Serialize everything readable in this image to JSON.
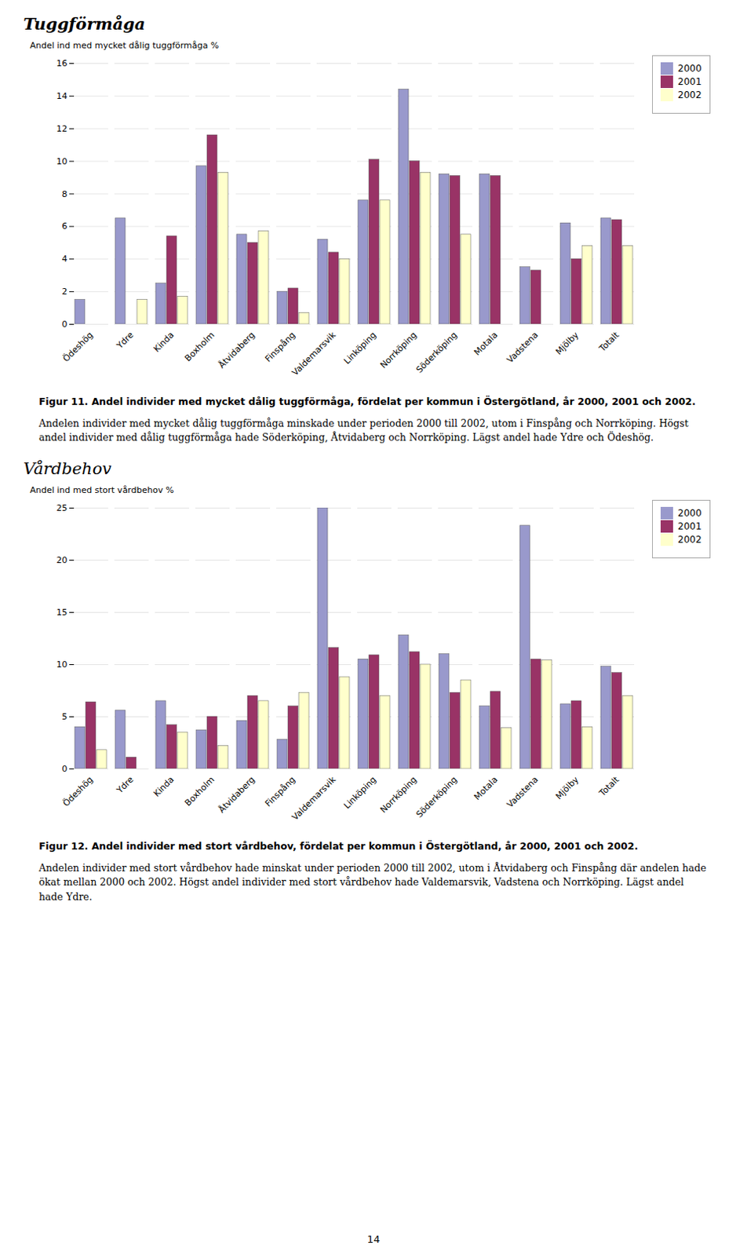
{
  "chart_data": [
    {
      "type": "bar",
      "title": "Tuggförmåga",
      "ylabel": "Andel ind med mycket dålig tuggförmåga %",
      "categories": [
        "Ödeshög",
        "Ydre",
        "Kinda",
        "Boxholm",
        "Åtvidaberg",
        "Finspång",
        "Valdemarsvik",
        "Linköping",
        "Norrköping",
        "Söderköping",
        "Motala",
        "Vadstena",
        "Mjölby",
        "Totalt"
      ],
      "series": [
        {
          "name": "2000",
          "color": "#9999CC",
          "values": [
            1.5,
            6.5,
            2.5,
            9.7,
            5.5,
            2.0,
            5.2,
            7.6,
            14.4,
            9.2,
            9.2,
            3.5,
            6.2,
            6.5
          ]
        },
        {
          "name": "2001",
          "color": "#993366",
          "values": [
            0.0,
            0.0,
            5.4,
            11.6,
            5.0,
            2.2,
            4.4,
            10.1,
            10.0,
            9.1,
            9.1,
            3.3,
            4.0,
            6.4
          ]
        },
        {
          "name": "2002",
          "color": "#FFFFCC",
          "values": [
            0.0,
            1.5,
            1.7,
            9.3,
            5.7,
            0.7,
            4.0,
            7.6,
            9.3,
            5.5,
            0.0,
            0.0,
            4.8,
            4.8
          ]
        }
      ],
      "ylim": [
        0,
        16
      ],
      "yticks": [
        0,
        2,
        4,
        6,
        8,
        10,
        12,
        14,
        16
      ],
      "grid": true,
      "legend": "right",
      "annotations": [
        "Figur 11. Andel individer med mycket dålig tuggförmåga, fördelat per kommun i Östergötland, år 2000, 2001 och 2002.",
        "Andelen individer med mycket dålig tuggförmåga minskade under perioden 2000 till 2002, utom i Finspång och Norrköping. Högst andel individer med dålig tuggförmåga hade Söderköping, Åtvidaberg och Norrköping. Lägst andel hade Ydre och Ödeshög."
      ]
    },
    {
      "type": "bar",
      "title": "Vårdbehov",
      "ylabel": "Andel ind med stort vårdbehov %",
      "categories": [
        "Ödeshög",
        "Ydre",
        "Kinda",
        "Boxholm",
        "Åtvidaberg",
        "Finspång",
        "Valdemarsvik",
        "Linköping",
        "Norrköping",
        "Söderköping",
        "Motala",
        "Vadstena",
        "Mjölby",
        "Totalt"
      ],
      "series": [
        {
          "name": "2000",
          "color": "#9999CC",
          "values": [
            4.0,
            5.6,
            6.5,
            3.7,
            4.6,
            2.8,
            25.0,
            10.5,
            12.8,
            11.0,
            6.0,
            23.3,
            6.2,
            9.8
          ]
        },
        {
          "name": "2001",
          "color": "#993366",
          "values": [
            6.4,
            1.1,
            4.2,
            5.0,
            7.0,
            6.0,
            11.6,
            10.9,
            11.2,
            7.3,
            7.4,
            10.5,
            6.5,
            9.2
          ]
        },
        {
          "name": "2002",
          "color": "#FFFFCC",
          "values": [
            1.8,
            0.0,
            3.5,
            2.2,
            6.5,
            7.3,
            8.8,
            7.0,
            10.0,
            8.5,
            3.9,
            10.4,
            4.0,
            7.0
          ]
        }
      ],
      "ylim": [
        0,
        25
      ],
      "yticks": [
        0,
        5,
        10,
        15,
        20,
        25
      ],
      "grid": true,
      "legend": "right",
      "annotations": [
        "Figur 12. Andel individer med stort vårdbehov, fördelat per kommun i Östergötland, år 2000, 2001 och 2002.",
        "Andelen individer med stort vårdbehov hade minskat under perioden 2000 till 2002, utom i Åtvidaberg och Finspång där andelen hade ökat mellan 2000 och 2002. Högst andel individer med stort vårdbehov hade Valdemarsvik, Vadstena och Norrköping. Lägst andel hade Ydre."
      ]
    }
  ],
  "annotations": [
    "14"
  ]
}
